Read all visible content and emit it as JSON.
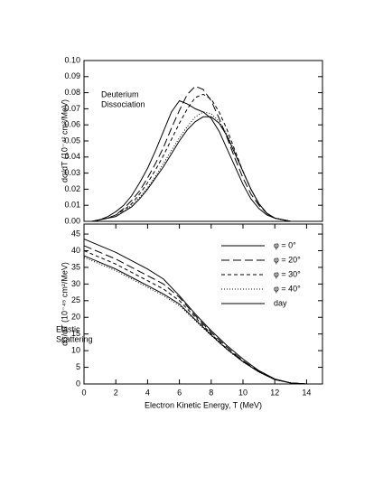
{
  "chart_data": [
    {
      "type": "line",
      "ylabel": "dσ/dT   (10⁻⁴² cm²/MeV)",
      "annotation": [
        "Deuterium",
        "Dissociation"
      ],
      "xlim": [
        0,
        15
      ],
      "ylim": [
        0,
        0.1
      ],
      "yticks": [
        {
          "value": 0,
          "label": "0.00"
        },
        0.01,
        0.02,
        0.03,
        0.04,
        0.05,
        0.06,
        0.07,
        0.08,
        0.09,
        {
          "value": 0.1,
          "label": "0.10"
        }
      ],
      "x": [
        0,
        0.5,
        1,
        1.5,
        2,
        2.5,
        3,
        3.5,
        4,
        4.5,
        5,
        5.5,
        6,
        6.5,
        7,
        7.5,
        8,
        8.5,
        9,
        9.5,
        10,
        10.5,
        11,
        11.5,
        12,
        12.5,
        13
      ],
      "series": [
        {
          "dash": "solid",
          "color": "#000000",
          "values": [
            0,
            0,
            0.001,
            0.003,
            0.006,
            0.01,
            0.016,
            0.024,
            0.033,
            0.044,
            0.056,
            0.068,
            0.075,
            0.073,
            0.07,
            0.068,
            0.064,
            0.056,
            0.045,
            0.034,
            0.023,
            0.014,
            0.008,
            0.004,
            0.002,
            0.001,
            0
          ]
        },
        {
          "dash": "long",
          "color": "#000000",
          "values": [
            0,
            0,
            0.001,
            0.002,
            0.004,
            0.008,
            0.013,
            0.019,
            0.027,
            0.036,
            0.046,
            0.058,
            0.069,
            0.079,
            0.084,
            0.082,
            0.075,
            0.064,
            0.052,
            0.039,
            0.027,
            0.017,
            0.01,
            0.005,
            0.002,
            0.001,
            0
          ]
        },
        {
          "dash": "short",
          "color": "#000000",
          "values": [
            0,
            0,
            0.001,
            0.002,
            0.004,
            0.007,
            0.011,
            0.017,
            0.024,
            0.032,
            0.041,
            0.051,
            0.061,
            0.07,
            0.077,
            0.079,
            0.076,
            0.068,
            0.057,
            0.044,
            0.031,
            0.02,
            0.011,
            0.005,
            0.002,
            0.001,
            0
          ]
        },
        {
          "dash": "dotted",
          "color": "#000000",
          "values": [
            0,
            0,
            0.001,
            0.002,
            0.003,
            0.006,
            0.01,
            0.015,
            0.021,
            0.028,
            0.036,
            0.044,
            0.052,
            0.059,
            0.065,
            0.068,
            0.067,
            0.062,
            0.054,
            0.043,
            0.031,
            0.02,
            0.011,
            0.005,
            0.002,
            0.001,
            0
          ]
        },
        {
          "dash": "solid",
          "color": "#000000",
          "values": [
            0,
            0,
            0.001,
            0.002,
            0.003,
            0.006,
            0.009,
            0.014,
            0.02,
            0.027,
            0.034,
            0.042,
            0.05,
            0.057,
            0.062,
            0.065,
            0.065,
            0.061,
            0.053,
            0.042,
            0.031,
            0.02,
            0.011,
            0.005,
            0.002,
            0.001,
            0
          ]
        }
      ]
    },
    {
      "type": "line",
      "ylabel": "dσ/dT   (10⁻⁴⁵ cm²/MeV)",
      "xlabel": "Electron Kinetic Energy, T   (MeV)",
      "annotation": [
        "Elastic",
        "Scattering"
      ],
      "xlim": [
        0,
        15
      ],
      "ylim": [
        0,
        48
      ],
      "xticks": [
        0,
        2,
        4,
        6,
        8,
        10,
        12,
        14
      ],
      "yticks": [
        0,
        5,
        10,
        15,
        20,
        25,
        30,
        35,
        40,
        45
      ],
      "legend": "upper right",
      "x": [
        0,
        1,
        2,
        3,
        4,
        5,
        6,
        7,
        8,
        9,
        10,
        11,
        12,
        13,
        14
      ],
      "series": [
        {
          "name": "φ = 0°",
          "dash": "solid",
          "color": "#000000",
          "values": [
            43.5,
            41.5,
            39.5,
            37,
            34.5,
            31.5,
            26.5,
            21,
            16,
            11.5,
            7.5,
            4,
            1.5,
            0.3,
            0
          ]
        },
        {
          "name": "φ = 20°",
          "dash": "long",
          "color": "#000000",
          "values": [
            41.5,
            39.5,
            37.5,
            35,
            32.5,
            30,
            26,
            20.5,
            15.5,
            11,
            7,
            3.8,
            1.4,
            0.3,
            0
          ]
        },
        {
          "name": "φ = 30°",
          "dash": "short",
          "color": "#000000",
          "values": [
            40,
            38,
            36,
            33.5,
            31,
            28.5,
            25,
            20,
            15,
            10.5,
            6.8,
            3.7,
            1.4,
            0.3,
            0
          ]
        },
        {
          "name": "φ = 40°",
          "dash": "dotted",
          "color": "#000000",
          "values": [
            38,
            36,
            34,
            31.5,
            29,
            26.5,
            23.5,
            19,
            14.5,
            10.3,
            6.6,
            3.6,
            1.3,
            0.3,
            0
          ]
        },
        {
          "name": "day",
          "dash": "solid",
          "color": "#000000",
          "values": [
            38.5,
            36.5,
            34.5,
            32,
            29.5,
            27,
            24,
            19.3,
            14.7,
            10.4,
            6.7,
            3.6,
            1.3,
            0.3,
            0
          ]
        }
      ]
    }
  ]
}
